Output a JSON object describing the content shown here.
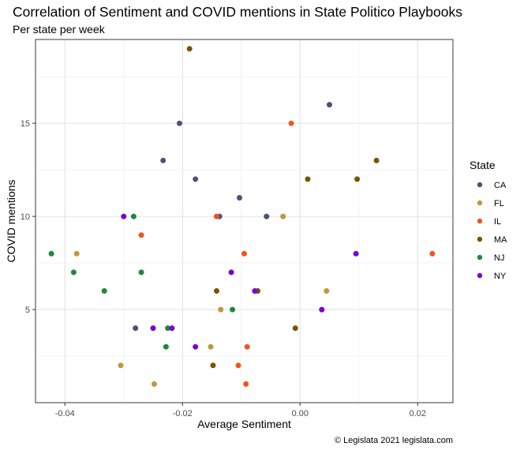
{
  "chart_data": {
    "type": "scatter",
    "title": "Correlation of Sentiment and COVID mentions in State Politico Playbooks",
    "subtitle": "Per state per week",
    "xlabel": "Average Sentiment",
    "ylabel": "COVID mentions",
    "caption": "© Legislata 2021 legislata.com",
    "xlim": [
      -0.045,
      0.026
    ],
    "ylim": [
      0,
      19.5
    ],
    "x_ticks": [
      -0.04,
      -0.02,
      0.0,
      0.02
    ],
    "x_tick_labels": [
      "-0.04",
      "-0.02",
      "0.00",
      "0.02"
    ],
    "y_ticks": [
      5,
      10,
      15
    ],
    "y_tick_labels": [
      "5",
      "10",
      "15"
    ],
    "grid": true,
    "legend": {
      "title": "State",
      "position": "right"
    },
    "series": [
      {
        "name": "CA",
        "color": "#4F507A",
        "points": [
          {
            "x": 0.005,
            "y": 16
          },
          {
            "x": -0.0205,
            "y": 15
          },
          {
            "x": -0.0233,
            "y": 13
          },
          {
            "x": -0.0178,
            "y": 12
          },
          {
            "x": -0.0103,
            "y": 11
          },
          {
            "x": -0.0137,
            "y": 10
          },
          {
            "x": -0.0057,
            "y": 10
          },
          {
            "x": -0.028,
            "y": 4
          }
        ]
      },
      {
        "name": "FL",
        "color": "#C4963A",
        "points": [
          {
            "x": -0.0029,
            "y": 10
          },
          {
            "x": -0.038,
            "y": 8
          },
          {
            "x": 0.0045,
            "y": 6
          },
          {
            "x": -0.0135,
            "y": 5
          },
          {
            "x": -0.0152,
            "y": 3
          },
          {
            "x": -0.0305,
            "y": 2
          },
          {
            "x": -0.0248,
            "y": 1
          }
        ]
      },
      {
        "name": "IL",
        "color": "#F0541E",
        "points": [
          {
            "x": -0.0015,
            "y": 15
          },
          {
            "x": -0.0142,
            "y": 10
          },
          {
            "x": -0.027,
            "y": 9
          },
          {
            "x": -0.0095,
            "y": 8
          },
          {
            "x": 0.0225,
            "y": 8
          },
          {
            "x": -0.009,
            "y": 3
          },
          {
            "x": -0.0105,
            "y": 2
          },
          {
            "x": -0.0092,
            "y": 1
          }
        ]
      },
      {
        "name": "MA",
        "color": "#7B5200",
        "points": [
          {
            "x": -0.0188,
            "y": 19
          },
          {
            "x": 0.013,
            "y": 13
          },
          {
            "x": 0.0013,
            "y": 12
          },
          {
            "x": 0.0097,
            "y": 12
          },
          {
            "x": -0.0142,
            "y": 6
          },
          {
            "x": -0.0072,
            "y": 6
          },
          {
            "x": -0.0008,
            "y": 4
          },
          {
            "x": -0.0148,
            "y": 2
          }
        ]
      },
      {
        "name": "NJ",
        "color": "#1A8A3A",
        "points": [
          {
            "x": -0.0283,
            "y": 10
          },
          {
            "x": -0.0423,
            "y": 8
          },
          {
            "x": -0.0385,
            "y": 7
          },
          {
            "x": -0.027,
            "y": 7
          },
          {
            "x": -0.0333,
            "y": 6
          },
          {
            "x": -0.0115,
            "y": 5
          },
          {
            "x": -0.0225,
            "y": 4
          },
          {
            "x": -0.0228,
            "y": 3
          }
        ]
      },
      {
        "name": "NY",
        "color": "#7A00D6",
        "points": [
          {
            "x": -0.03,
            "y": 10
          },
          {
            "x": 0.0095,
            "y": 8
          },
          {
            "x": -0.0117,
            "y": 7
          },
          {
            "x": -0.0077,
            "y": 6
          },
          {
            "x": 0.0037,
            "y": 5
          },
          {
            "x": -0.025,
            "y": 4
          },
          {
            "x": -0.0218,
            "y": 4
          },
          {
            "x": -0.0178,
            "y": 3
          }
        ]
      }
    ]
  }
}
